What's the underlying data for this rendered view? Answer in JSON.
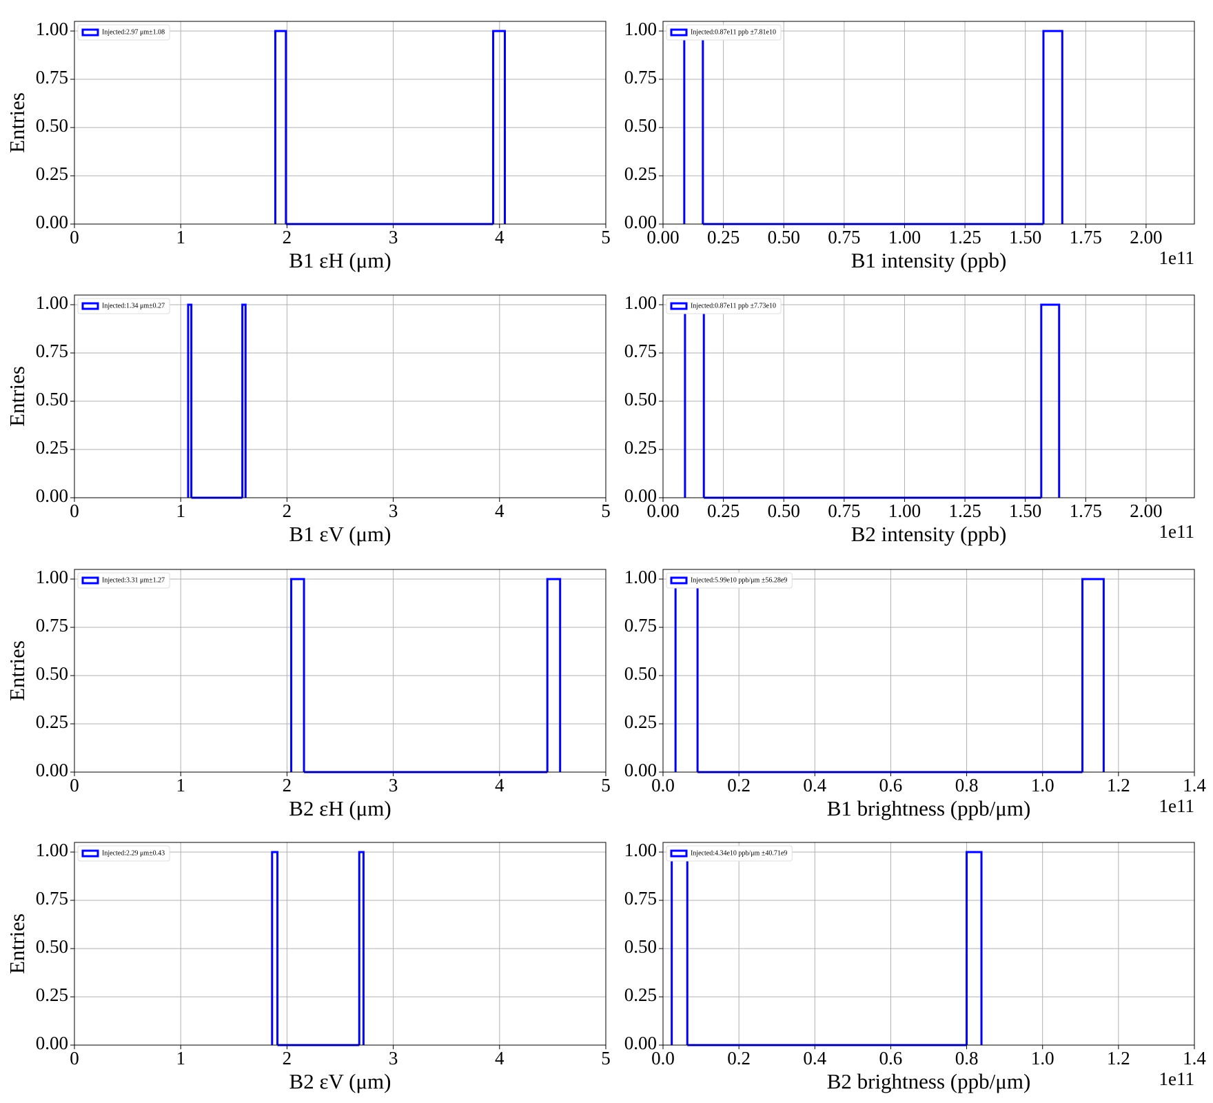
{
  "chart_data": [
    {
      "type": "histogram",
      "ylabel": "Entries",
      "xlabel": "B1 εH (μm)",
      "legend_label": "Injected:2.97 μm±1.08",
      "legend": "upper left",
      "color": "#0000ff",
      "grid": true,
      "bins": [
        1.89,
        1.99,
        3.94,
        4.05
      ],
      "counts": [
        1,
        0,
        1
      ],
      "xlim": [
        0,
        5
      ],
      "xticks": [
        0,
        1,
        2,
        3,
        4,
        5
      ],
      "ylim": [
        0,
        1.05
      ],
      "yticks": [
        {
          "value": 0,
          "label": "0.00"
        },
        {
          "value": 0.25,
          "label": "0.25"
        },
        {
          "value": 0.5,
          "label": "0.50"
        },
        {
          "value": 0.75,
          "label": "0.75"
        },
        {
          "value": 1,
          "label": "1.00"
        }
      ]
    },
    {
      "type": "histogram",
      "xlabel": "B1 intensity (ppb)",
      "offset_text": "1e11",
      "legend_label": "Injected:0.87e11 ppb ±7.81e10",
      "legend": "upper left",
      "color": "#0000ff",
      "grid": true,
      "bins": [
        0.088,
        0.165,
        1.575,
        1.653
      ],
      "counts": [
        1,
        0,
        1
      ],
      "xlim": [
        0,
        2.2
      ],
      "xticks": [
        {
          "value": 0,
          "label": "0.00"
        },
        {
          "value": 0.25,
          "label": "0.25"
        },
        {
          "value": 0.5,
          "label": "0.50"
        },
        {
          "value": 0.75,
          "label": "0.75"
        },
        {
          "value": 1,
          "label": "1.00"
        },
        {
          "value": 1.25,
          "label": "1.25"
        },
        {
          "value": 1.5,
          "label": "1.50"
        },
        {
          "value": 1.75,
          "label": "1.75"
        },
        {
          "value": 2,
          "label": "2.00"
        }
      ],
      "ylim": [
        0,
        1.05
      ],
      "yticks": [
        {
          "value": 0,
          "label": "0.00"
        },
        {
          "value": 0.25,
          "label": "0.25"
        },
        {
          "value": 0.5,
          "label": "0.50"
        },
        {
          "value": 0.75,
          "label": "0.75"
        },
        {
          "value": 1,
          "label": "1.00"
        }
      ]
    },
    {
      "type": "histogram",
      "ylabel": "Entries",
      "xlabel": "B1 εV (μm)",
      "legend_label": "Injected:1.34 μm±0.27",
      "legend": "upper left",
      "color": "#0000ff",
      "grid": true,
      "bins": [
        1.07,
        1.1,
        1.58,
        1.61
      ],
      "counts": [
        1,
        0,
        1
      ],
      "xlim": [
        0,
        5
      ],
      "xticks": [
        0,
        1,
        2,
        3,
        4,
        5
      ],
      "ylim": [
        0,
        1.05
      ],
      "yticks": [
        {
          "value": 0,
          "label": "0.00"
        },
        {
          "value": 0.25,
          "label": "0.25"
        },
        {
          "value": 0.5,
          "label": "0.50"
        },
        {
          "value": 0.75,
          "label": "0.75"
        },
        {
          "value": 1,
          "label": "1.00"
        }
      ]
    },
    {
      "type": "histogram",
      "xlabel": "B2 intensity (ppb)",
      "offset_text": "1e11",
      "legend_label": "Injected:0.87e11 ppb ±7.73e10",
      "legend": "upper left",
      "color": "#0000ff",
      "grid": true,
      "bins": [
        0.091,
        0.169,
        1.566,
        1.64
      ],
      "counts": [
        1,
        0,
        1
      ],
      "xlim": [
        0,
        2.2
      ],
      "xticks": [
        {
          "value": 0,
          "label": "0.00"
        },
        {
          "value": 0.25,
          "label": "0.25"
        },
        {
          "value": 0.5,
          "label": "0.50"
        },
        {
          "value": 0.75,
          "label": "0.75"
        },
        {
          "value": 1,
          "label": "1.00"
        },
        {
          "value": 1.25,
          "label": "1.25"
        },
        {
          "value": 1.5,
          "label": "1.50"
        },
        {
          "value": 1.75,
          "label": "1.75"
        },
        {
          "value": 2,
          "label": "2.00"
        }
      ],
      "ylim": [
        0,
        1.05
      ],
      "yticks": [
        {
          "value": 0,
          "label": "0.00"
        },
        {
          "value": 0.25,
          "label": "0.25"
        },
        {
          "value": 0.5,
          "label": "0.50"
        },
        {
          "value": 0.75,
          "label": "0.75"
        },
        {
          "value": 1,
          "label": "1.00"
        }
      ]
    },
    {
      "type": "histogram",
      "ylabel": "Entries",
      "xlabel": "B2 εH (μm)",
      "legend_label": "Injected:3.31 μm±1.27",
      "legend": "upper left",
      "color": "#0000ff",
      "grid": true,
      "bins": [
        2.04,
        2.16,
        4.45,
        4.57
      ],
      "counts": [
        1,
        0,
        1
      ],
      "xlim": [
        0,
        5
      ],
      "xticks": [
        0,
        1,
        2,
        3,
        4,
        5
      ],
      "ylim": [
        0,
        1.05
      ],
      "yticks": [
        {
          "value": 0,
          "label": "0.00"
        },
        {
          "value": 0.25,
          "label": "0.25"
        },
        {
          "value": 0.5,
          "label": "0.50"
        },
        {
          "value": 0.75,
          "label": "0.75"
        },
        {
          "value": 1,
          "label": "1.00"
        }
      ]
    },
    {
      "type": "histogram",
      "xlabel": "B1 brightness (ppb/μm)",
      "offset_text": "1e11",
      "legend_label": "Injected:5.99e10 ppb/μm ±56.28e9",
      "legend": "upper left",
      "color": "#0000ff",
      "grid": true,
      "bins": [
        0.033,
        0.091,
        1.105,
        1.161
      ],
      "counts": [
        1,
        0,
        1
      ],
      "xlim": [
        0,
        1.4
      ],
      "xticks": [
        {
          "value": 0,
          "label": "0.0"
        },
        0.2,
        0.4,
        0.6,
        0.8,
        {
          "value": 1,
          "label": "1.0"
        },
        1.2,
        1.4
      ],
      "ylim": [
        0,
        1.05
      ],
      "yticks": [
        {
          "value": 0,
          "label": "0.00"
        },
        {
          "value": 0.25,
          "label": "0.25"
        },
        {
          "value": 0.5,
          "label": "0.50"
        },
        {
          "value": 0.75,
          "label": "0.75"
        },
        {
          "value": 1,
          "label": "1.00"
        }
      ]
    },
    {
      "type": "histogram",
      "ylabel": "Entries",
      "xlabel": "B2 εV (μm)",
      "legend_label": "Injected:2.29 μm±0.43",
      "legend": "upper left",
      "color": "#0000ff",
      "grid": true,
      "bins": [
        1.86,
        1.91,
        2.68,
        2.72
      ],
      "counts": [
        1,
        0,
        1
      ],
      "xlim": [
        0,
        5
      ],
      "xticks": [
        0,
        1,
        2,
        3,
        4,
        5
      ],
      "ylim": [
        0,
        1.05
      ],
      "yticks": [
        {
          "value": 0,
          "label": "0.00"
        },
        {
          "value": 0.25,
          "label": "0.25"
        },
        {
          "value": 0.5,
          "label": "0.50"
        },
        {
          "value": 0.75,
          "label": "0.75"
        },
        {
          "value": 1,
          "label": "1.00"
        }
      ]
    },
    {
      "type": "histogram",
      "xlabel": "B2 brightness (ppb/μm)",
      "offset_text": "1e11",
      "legend_label": "Injected:4.34e10 ppb/μm ±40.71e9",
      "legend": "upper left",
      "color": "#0000ff",
      "grid": true,
      "bins": [
        0.023,
        0.064,
        0.8,
        0.839
      ],
      "counts": [
        1,
        0,
        1
      ],
      "xlim": [
        0,
        1.4
      ],
      "xticks": [
        {
          "value": 0,
          "label": "0.0"
        },
        0.2,
        0.4,
        0.6,
        0.8,
        {
          "value": 1,
          "label": "1.0"
        },
        1.2,
        1.4
      ],
      "ylim": [
        0,
        1.05
      ],
      "yticks": [
        {
          "value": 0,
          "label": "0.00"
        },
        {
          "value": 0.25,
          "label": "0.25"
        },
        {
          "value": 0.5,
          "label": "0.50"
        },
        {
          "value": 0.75,
          "label": "0.75"
        },
        {
          "value": 1,
          "label": "1.00"
        }
      ]
    }
  ]
}
